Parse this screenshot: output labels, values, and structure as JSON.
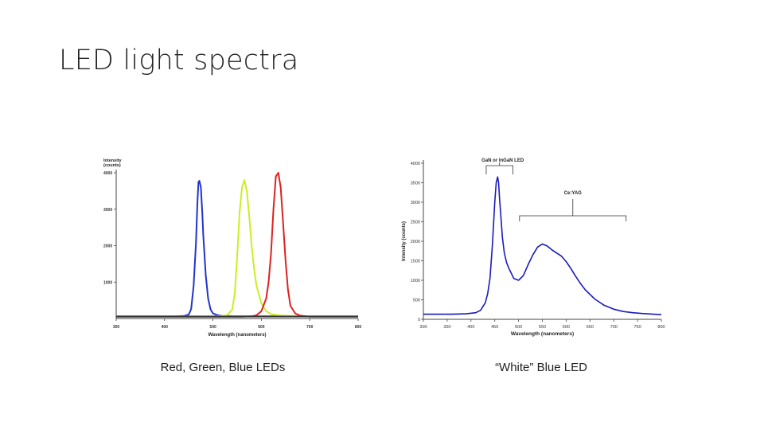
{
  "slide": {
    "title": "LED light spectra",
    "captions": [
      "Red, Green, Blue LEDs",
      "“White” Blue LED"
    ]
  },
  "chart_data": [
    {
      "type": "line",
      "title": "",
      "xlabel": "Wavelength (nanometers)",
      "ylabel": "Intensity (counts)",
      "xlim": [
        300,
        800
      ],
      "ylim": [
        0,
        4000
      ],
      "xticks": [
        "300",
        "400",
        "500",
        "600",
        "700",
        "800"
      ],
      "yticks": [
        "1000",
        "2000",
        "3000",
        "4000"
      ],
      "grid": false,
      "series": [
        {
          "color": "#2233cc",
          "x": [
            300,
            420,
            440,
            450,
            455,
            460,
            465,
            468,
            470,
            472,
            475,
            478,
            480,
            485,
            490,
            495,
            500,
            510,
            520,
            540,
            560,
            600,
            700,
            800
          ],
          "y": [
            60,
            60,
            70,
            110,
            260,
            900,
            2100,
            3200,
            3750,
            3780,
            3600,
            2900,
            2300,
            1200,
            550,
            250,
            140,
            90,
            70,
            60,
            60,
            60,
            60,
            60
          ]
        },
        {
          "color": "#ccee22",
          "x": [
            300,
            500,
            520,
            530,
            540,
            545,
            550,
            555,
            560,
            565,
            570,
            575,
            580,
            585,
            590,
            600,
            610,
            620,
            640,
            700,
            800
          ],
          "y": [
            60,
            60,
            70,
            100,
            250,
            700,
            1700,
            2900,
            3600,
            3800,
            3500,
            2800,
            2000,
            1350,
            900,
            420,
            200,
            120,
            80,
            60,
            60
          ]
        },
        {
          "color": "#dd2222",
          "x": [
            300,
            560,
            580,
            590,
            600,
            610,
            615,
            620,
            625,
            630,
            635,
            640,
            645,
            650,
            655,
            660,
            670,
            680,
            700,
            800
          ],
          "y": [
            50,
            50,
            60,
            90,
            200,
            550,
            1000,
            1800,
            3000,
            3900,
            4000,
            3600,
            2600,
            1600,
            800,
            350,
            140,
            80,
            50,
            50
          ]
        },
        {
          "color": "#333333",
          "x": [
            300,
            350,
            400,
            450,
            500,
            550,
            600,
            650,
            700,
            750,
            800
          ],
          "y": [
            55,
            55,
            55,
            55,
            55,
            55,
            55,
            55,
            55,
            55,
            55
          ]
        }
      ]
    },
    {
      "type": "line",
      "title": "",
      "xlabel": "Wavelength (nanometers)",
      "ylabel": "Intensity (counts)",
      "xlim": [
        300,
        800
      ],
      "ylim": [
        0,
        4000
      ],
      "xticks": [
        "300",
        "350",
        "400",
        "450",
        "500",
        "550",
        "600",
        "650",
        "700",
        "750",
        "800"
      ],
      "yticks": [
        "0",
        "500",
        "1000",
        "1500",
        "2000",
        "2500",
        "3000",
        "3500",
        "4000"
      ],
      "grid": false,
      "annotations": [
        "GaN or InGaN LED",
        "Ce:YAG"
      ],
      "series": [
        {
          "color": "#1a1abf",
          "x": [
            300,
            330,
            360,
            390,
            410,
            420,
            430,
            435,
            440,
            445,
            450,
            453,
            456,
            458,
            460,
            463,
            466,
            470,
            475,
            480,
            490,
            500,
            510,
            520,
            530,
            540,
            550,
            560,
            570,
            580,
            590,
            600,
            610,
            620,
            630,
            640,
            660,
            680,
            700,
            720,
            740,
            760,
            780,
            800
          ],
          "y": [
            130,
            130,
            130,
            140,
            170,
            230,
            420,
            650,
            1050,
            1900,
            3000,
            3500,
            3650,
            3500,
            3100,
            2600,
            2100,
            1700,
            1450,
            1300,
            1050,
            1000,
            1120,
            1400,
            1650,
            1850,
            1930,
            1880,
            1780,
            1700,
            1620,
            1480,
            1300,
            1100,
            920,
            760,
            520,
            360,
            260,
            200,
            170,
            150,
            135,
            120
          ]
        }
      ]
    }
  ]
}
